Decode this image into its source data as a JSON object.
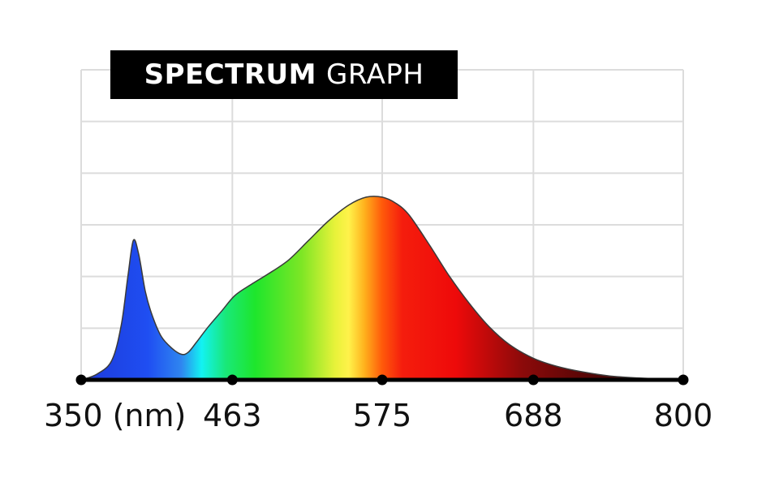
{
  "chart_data": {
    "type": "area",
    "title_bold": "SPECTRUM",
    "title_light": "GRAPH",
    "xlabel_unit": "(nm)",
    "xlim": [
      350,
      800
    ],
    "ylim": [
      0,
      1
    ],
    "x_ticks": [
      "350",
      "463",
      "575",
      "688",
      "800"
    ],
    "y_gridlines": 6,
    "grid": true,
    "series": [
      {
        "x": [
          350,
          362,
          373,
          380,
          385,
          389,
          393,
          398,
          403,
          410,
          418,
          425,
          430,
          436,
          445,
          455,
          465,
          478,
          490,
          505,
          520,
          535,
          550,
          563,
          575,
          585,
          595,
          610,
          625,
          640,
          655,
          670,
          688,
          705,
          725,
          745,
          765,
          785,
          800
        ],
        "y": [
          0.0,
          0.03,
          0.1,
          0.28,
          0.53,
          0.71,
          0.64,
          0.45,
          0.33,
          0.22,
          0.16,
          0.13,
          0.14,
          0.19,
          0.27,
          0.35,
          0.43,
          0.49,
          0.54,
          0.61,
          0.71,
          0.81,
          0.89,
          0.93,
          0.93,
          0.9,
          0.84,
          0.69,
          0.53,
          0.39,
          0.27,
          0.18,
          0.11,
          0.07,
          0.04,
          0.02,
          0.01,
          0.005,
          0.0
        ]
      }
    ],
    "colors": {
      "spectrum_stops": [
        {
          "nm": 350,
          "color": "#1d3ad8"
        },
        {
          "nm": 400,
          "color": "#1f4ef2"
        },
        {
          "nm": 425,
          "color": "#2f86f0"
        },
        {
          "nm": 440,
          "color": "#13f2f2"
        },
        {
          "nm": 458,
          "color": "#19e879"
        },
        {
          "nm": 480,
          "color": "#1ee62c"
        },
        {
          "nm": 515,
          "color": "#7ee625"
        },
        {
          "nm": 540,
          "color": "#e8f23a"
        },
        {
          "nm": 550,
          "color": "#fff24a"
        },
        {
          "nm": 562,
          "color": "#ffb01c"
        },
        {
          "nm": 575,
          "color": "#ff5a0a"
        },
        {
          "nm": 590,
          "color": "#f51d0d"
        },
        {
          "nm": 630,
          "color": "#ee0a0a"
        },
        {
          "nm": 680,
          "color": "#8b0a0a"
        },
        {
          "nm": 740,
          "color": "#4a0505"
        },
        {
          "nm": 800,
          "color": "#2a0202"
        }
      ],
      "grid": "#dcdcdc",
      "axis": "#000000"
    }
  }
}
